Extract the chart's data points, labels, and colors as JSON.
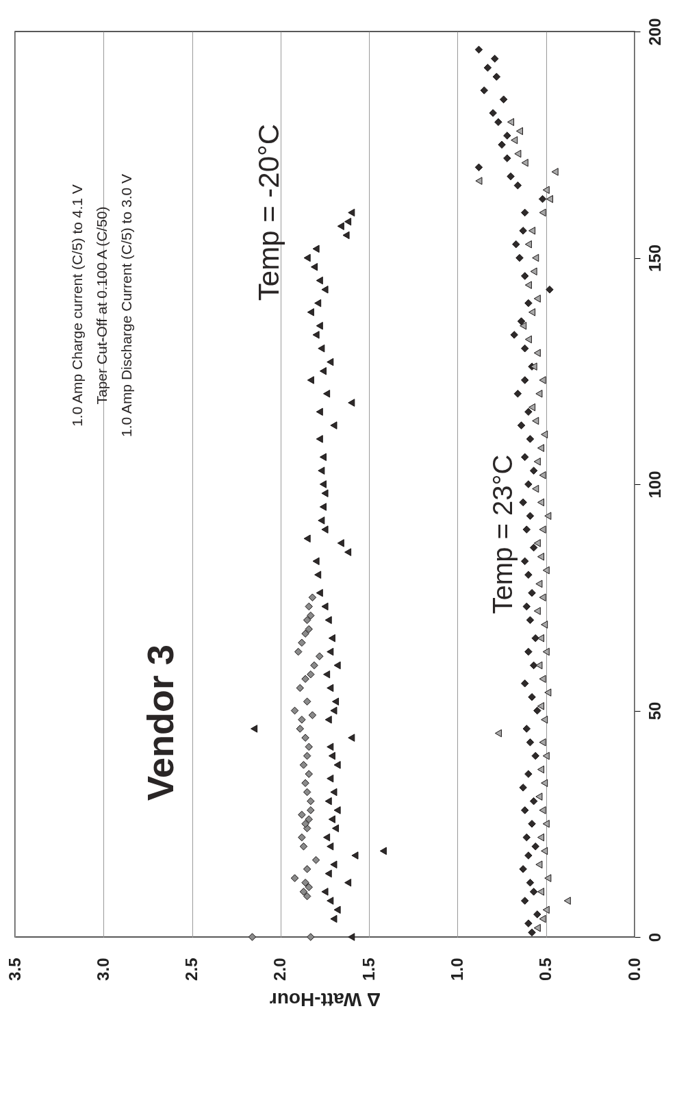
{
  "chart_data": {
    "type": "scatter",
    "title": "Vendor 3",
    "xlabel": "Δ Watt-Hour",
    "annotations": [
      "1.0 Amp Charge current (C/5) to 4.1 V",
      "Taper Cut-Off at 0.100 A (C/50)",
      "1.0 Amp Discharge Current (C/5) to 3.0 V",
      "Temp = -20°C",
      "Temp = 23°C"
    ],
    "ylim": [
      0,
      200
    ],
    "yticks": [
      0,
      50,
      100,
      150,
      200
    ],
    "xlim": [
      3.5,
      0
    ],
    "xticks": [
      {
        "value": 3.5,
        "label": "3.5"
      },
      {
        "value": 3,
        "label": "3.0"
      },
      {
        "value": 2.5,
        "label": "2.5"
      },
      {
        "value": 2,
        "label": "2.0"
      },
      {
        "value": 1.5,
        "label": "1.5"
      },
      {
        "value": 1,
        "label": "1.0"
      },
      {
        "value": 0.5,
        "label": "0.5"
      },
      {
        "value": 0,
        "label": "0.0"
      }
    ],
    "grid": "x",
    "series": [
      {
        "color": "#8a8a8a",
        "marker": "diamond",
        "values": [
          0,
          0,
          9,
          10,
          11,
          12,
          13,
          15,
          17,
          20,
          22,
          24,
          25,
          26,
          27,
          28,
          30,
          32,
          34,
          36,
          38,
          40,
          42,
          44,
          46,
          48,
          49,
          50,
          52,
          55,
          57,
          58,
          60,
          62,
          63,
          65,
          67,
          68,
          70,
          71,
          73,
          75
        ],
        "x": [
          2.16,
          1.83,
          1.85,
          1.87,
          1.84,
          1.86,
          1.92,
          1.85,
          1.8,
          1.87,
          1.88,
          1.85,
          1.86,
          1.84,
          1.88,
          1.83,
          1.83,
          1.85,
          1.86,
          1.84,
          1.87,
          1.85,
          1.84,
          1.86,
          1.89,
          1.88,
          1.82,
          1.92,
          1.85,
          1.89,
          1.86,
          1.83,
          1.81,
          1.78,
          1.9,
          1.88,
          1.86,
          1.84,
          1.85,
          1.83,
          1.84,
          1.82
        ]
      },
      {
        "color": "#2e2a2a",
        "marker": "triangle",
        "values": [
          0,
          4,
          6,
          8,
          10,
          12,
          14,
          16,
          18,
          19,
          20,
          22,
          24,
          26,
          28,
          30,
          32,
          35,
          38,
          40,
          42,
          44,
          46,
          48,
          50,
          52,
          55,
          58,
          60,
          63,
          66,
          70,
          73,
          76,
          80,
          83,
          85,
          87,
          88,
          90,
          92,
          95,
          98,
          100,
          103,
          106,
          110,
          113,
          116,
          118,
          120,
          123,
          125,
          127,
          130,
          133,
          135,
          138,
          140,
          143,
          145,
          148,
          150,
          152,
          155,
          157,
          158,
          160
        ],
        "x": [
          1.6,
          1.7,
          1.68,
          1.72,
          1.75,
          1.62,
          1.73,
          1.7,
          1.58,
          1.42,
          1.72,
          1.74,
          1.69,
          1.71,
          1.68,
          1.73,
          1.7,
          1.72,
          1.68,
          1.71,
          1.72,
          1.6,
          2.15,
          1.73,
          1.7,
          1.69,
          1.72,
          1.74,
          1.68,
          1.72,
          1.71,
          1.73,
          1.75,
          1.78,
          1.79,
          1.8,
          1.62,
          1.66,
          1.85,
          1.75,
          1.77,
          1.76,
          1.75,
          1.76,
          1.77,
          1.76,
          1.78,
          1.7,
          1.78,
          1.6,
          1.74,
          1.83,
          1.76,
          1.72,
          1.77,
          1.8,
          1.78,
          1.83,
          1.79,
          1.75,
          1.78,
          1.81,
          1.85,
          1.8,
          1.63,
          1.66,
          1.62,
          1.6
        ]
      },
      {
        "color": "#2e2a2a",
        "marker": "diamond",
        "values": [
          1,
          3,
          5,
          8,
          10,
          12,
          15,
          18,
          20,
          22,
          25,
          28,
          30,
          33,
          36,
          40,
          43,
          46,
          50,
          53,
          56,
          60,
          63,
          66,
          70,
          73,
          76,
          80,
          83,
          86,
          90,
          93,
          96,
          100,
          103,
          106,
          110,
          113,
          116,
          120,
          123,
          126,
          130,
          133,
          136,
          140,
          143,
          146,
          150,
          153,
          156,
          160,
          163,
          166,
          168,
          170,
          172,
          175,
          177,
          180,
          182,
          185,
          187,
          190,
          192,
          194,
          196
        ],
        "x": [
          0.58,
          0.6,
          0.55,
          0.62,
          0.57,
          0.59,
          0.63,
          0.6,
          0.56,
          0.61,
          0.58,
          0.62,
          0.57,
          0.63,
          0.6,
          0.56,
          0.59,
          0.61,
          0.55,
          0.58,
          0.62,
          0.57,
          0.6,
          0.56,
          0.59,
          0.61,
          0.58,
          0.6,
          0.62,
          0.57,
          0.61,
          0.59,
          0.63,
          0.6,
          0.57,
          0.62,
          0.59,
          0.64,
          0.6,
          0.66,
          0.62,
          0.58,
          0.62,
          0.68,
          0.64,
          0.6,
          0.48,
          0.62,
          0.65,
          0.67,
          0.63,
          0.62,
          0.52,
          0.66,
          0.7,
          0.88,
          0.72,
          0.75,
          0.72,
          0.77,
          0.8,
          0.74,
          0.85,
          0.78,
          0.83,
          0.79,
          0.88
        ]
      },
      {
        "color": "#a8a8a8",
        "marker": "triangle",
        "values": [
          2,
          4,
          6,
          8,
          10,
          13,
          16,
          19,
          22,
          25,
          28,
          31,
          34,
          37,
          40,
          43,
          45,
          48,
          51,
          54,
          57,
          60,
          63,
          66,
          69,
          72,
          75,
          78,
          81,
          84,
          87,
          90,
          93,
          96,
          99,
          102,
          105,
          108,
          111,
          114,
          117,
          120,
          123,
          126,
          129,
          132,
          135,
          138,
          141,
          144,
          147,
          150,
          153,
          156,
          160,
          163,
          165,
          167,
          169,
          171,
          173,
          176,
          178,
          180
        ],
        "x": [
          0.55,
          0.52,
          0.5,
          0.38,
          0.53,
          0.49,
          0.54,
          0.51,
          0.53,
          0.5,
          0.52,
          0.54,
          0.51,
          0.53,
          0.5,
          0.52,
          0.77,
          0.51,
          0.53,
          0.49,
          0.52,
          0.54,
          0.5,
          0.53,
          0.51,
          0.55,
          0.52,
          0.54,
          0.5,
          0.53,
          0.55,
          0.52,
          0.49,
          0.53,
          0.56,
          0.52,
          0.55,
          0.53,
          0.51,
          0.56,
          0.58,
          0.54,
          0.52,
          0.57,
          0.55,
          0.6,
          0.63,
          0.58,
          0.55,
          0.6,
          0.57,
          0.56,
          0.6,
          0.58,
          0.52,
          0.48,
          0.5,
          0.88,
          0.45,
          0.62,
          0.66,
          0.68,
          0.65,
          0.7
        ]
      }
    ]
  }
}
